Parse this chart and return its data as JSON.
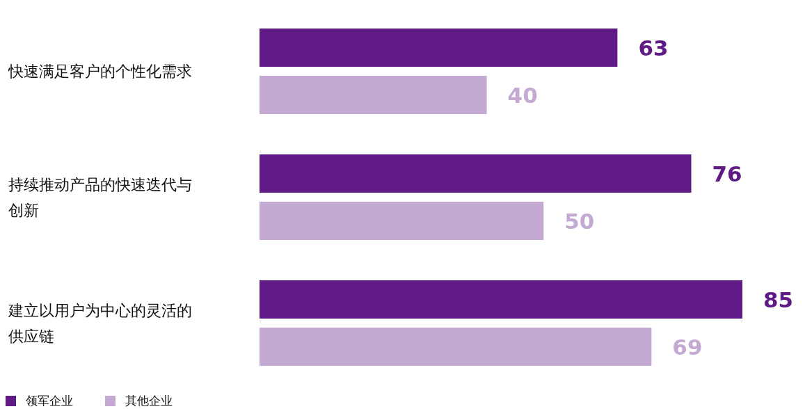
{
  "chart_data": {
    "type": "bar",
    "orientation": "horizontal",
    "categories": [
      "快速满足客户的个性化需求",
      "持续推动产品的快速迭代与创新",
      "建立以用户为中心的灵活的供应链"
    ],
    "series": [
      {
        "name": "领军企业",
        "color": "#5f1a85",
        "values": [
          63,
          76,
          85
        ]
      },
      {
        "name": "其他企业",
        "color": "#c4a9d2",
        "values": [
          40,
          50,
          69
        ]
      }
    ],
    "data_labels": true,
    "legend": "bottom left",
    "tick_labels": "y",
    "grid": false
  }
}
